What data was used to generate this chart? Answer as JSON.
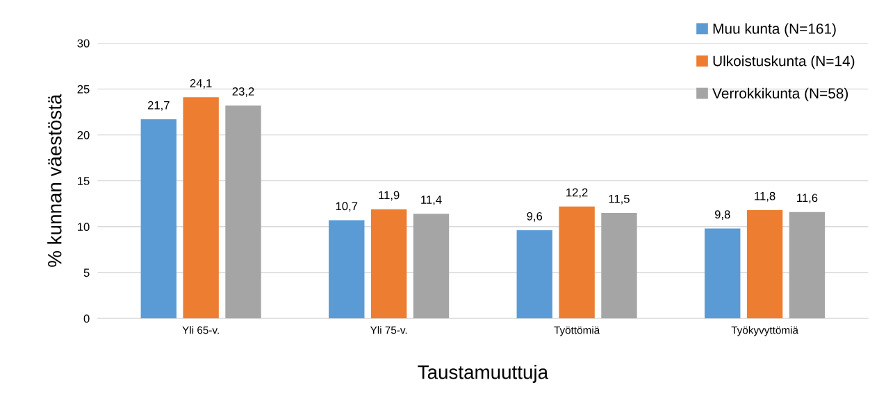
{
  "chart_data": {
    "type": "bar",
    "xlabel": "Taustamuuttuja",
    "ylabel": "% kunnan väestöstä",
    "categories": [
      "Yli 65-v.",
      "Yli 75-v.",
      "Työttömiä",
      "Työkyvyttömiä"
    ],
    "series": [
      {
        "name": "Muu kunta (N=161)",
        "color": "#5b9bd5",
        "values": [
          21.7,
          10.7,
          9.6,
          9.8
        ],
        "value_labels": [
          "21,7",
          "10,7",
          "9,6",
          "9,8"
        ]
      },
      {
        "name": "Ulkoistuskunta (N=14)",
        "color": "#ed7d31",
        "values": [
          24.1,
          11.9,
          12.2,
          11.8
        ],
        "value_labels": [
          "24,1",
          "11,9",
          "12,2",
          "11,8"
        ]
      },
      {
        "name": "Verrokkikunta (N=58)",
        "color": "#a5a5a5",
        "values": [
          23.2,
          11.4,
          11.5,
          11.6
        ],
        "value_labels": [
          "23,2",
          "11,4",
          "11,5",
          "11,6"
        ]
      }
    ],
    "ylim": [
      0,
      30
    ],
    "yticks": [
      0,
      5,
      10,
      15,
      20,
      25,
      30
    ],
    "grid": "y",
    "legend": "top right"
  }
}
